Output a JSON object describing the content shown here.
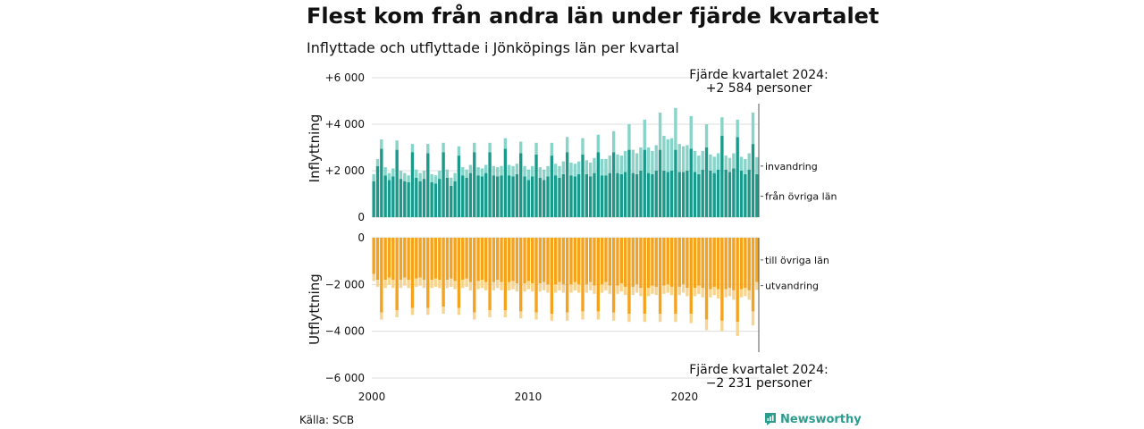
{
  "title": "Flest kom från andra län under fjärde kvartalet",
  "subtitle": "Inflyttade och utflyttade i Jönköpings län per kvartal",
  "source": "Källa: SCB",
  "brand": "Newsworthy",
  "colors": {
    "inflow_dark": "#1a9a8a",
    "inflow_light": "#88d4c9",
    "outflow_dark": "#f5a21c",
    "outflow_light": "#f7d590",
    "grid": "#dddddd",
    "brand": "#2a9d8f"
  },
  "chart_data": {
    "type": "bar",
    "stacked": true,
    "x_range": [
      2000,
      2024.75
    ],
    "x_ticks": [
      2000,
      2010,
      2020
    ],
    "x_tick_labels": [
      "2000",
      "2010",
      "2020"
    ],
    "inflow": {
      "ylabel": "Inflyttning",
      "ylim": [
        0,
        6000
      ],
      "y_ticks": [
        0,
        2000,
        4000,
        6000
      ],
      "y_tick_labels": [
        "0",
        "+2 000",
        "+4 000",
        "+6 000"
      ],
      "series": [
        {
          "name": "från övriga län",
          "values": [
            1550,
            2200,
            2950,
            1800,
            1600,
            1750,
            2900,
            1650,
            1550,
            1500,
            2800,
            1700,
            1550,
            1650,
            2750,
            1500,
            1450,
            1650,
            2800,
            1700,
            1350,
            1550,
            2650,
            1800,
            1700,
            1900,
            2800,
            1800,
            1750,
            1900,
            2800,
            1800,
            1750,
            1800,
            2950,
            1800,
            1750,
            1850,
            2750,
            1750,
            1600,
            1750,
            2700,
            1700,
            1600,
            1750,
            2650,
            1800,
            1700,
            1850,
            2800,
            1800,
            1750,
            1850,
            2700,
            1850,
            1750,
            1900,
            2800,
            1800,
            1800,
            1900,
            2800,
            1900,
            1850,
            1950,
            2900,
            1900,
            1850,
            2000,
            2900,
            1900,
            1850,
            2000,
            2900,
            2000,
            1950,
            2000,
            2900,
            1950,
            1950,
            2000,
            2950,
            1950,
            1850,
            2050,
            3000,
            2000,
            1900,
            2050,
            3500,
            2050,
            1950,
            2100,
            3450,
            2000,
            1850,
            2050,
            3150,
            1850
          ]
        },
        {
          "name": "invandring",
          "values": [
            300,
            300,
            400,
            350,
            300,
            350,
            400,
            350,
            350,
            300,
            350,
            350,
            350,
            350,
            400,
            350,
            350,
            350,
            400,
            350,
            350,
            350,
            400,
            350,
            350,
            350,
            400,
            350,
            350,
            350,
            400,
            400,
            400,
            400,
            450,
            450,
            450,
            450,
            500,
            450,
            450,
            450,
            500,
            450,
            450,
            450,
            550,
            500,
            500,
            550,
            650,
            550,
            550,
            550,
            700,
            600,
            600,
            650,
            750,
            700,
            700,
            750,
            900,
            800,
            800,
            900,
            1100,
            1000,
            900,
            1000,
            1300,
            1100,
            1000,
            1100,
            1600,
            1500,
            1400,
            1400,
            1800,
            1200,
            1100,
            1100,
            1400,
            900,
            800,
            800,
            1000,
            700,
            700,
            700,
            800,
            600,
            600,
            650,
            750,
            600,
            650,
            700,
            1350,
            734
          ]
        }
      ]
    },
    "outflow": {
      "ylabel": "Utflyttning",
      "ylim": [
        -6000,
        0
      ],
      "y_ticks": [
        0,
        -2000,
        -4000,
        -6000
      ],
      "y_tick_labels": [
        "0",
        "−2 000",
        "−4 000",
        "−6 000"
      ],
      "series": [
        {
          "name": "till övriga län",
          "values": [
            -1550,
            -1800,
            -3200,
            -1800,
            -1700,
            -1800,
            -3100,
            -1800,
            -1700,
            -1800,
            -3000,
            -1750,
            -1700,
            -1800,
            -3000,
            -1800,
            -1750,
            -1800,
            -2950,
            -1800,
            -1750,
            -1850,
            -3000,
            -1800,
            -1750,
            -1900,
            -3200,
            -1850,
            -1800,
            -1900,
            -3100,
            -1900,
            -1800,
            -1900,
            -3100,
            -1900,
            -1850,
            -1950,
            -3150,
            -1950,
            -1850,
            -1950,
            -3200,
            -1950,
            -1900,
            -2000,
            -3250,
            -2000,
            -1900,
            -2000,
            -3200,
            -2000,
            -1900,
            -2000,
            -3150,
            -2000,
            -1900,
            -2050,
            -3150,
            -2000,
            -1900,
            -2050,
            -3200,
            -2050,
            -1950,
            -2100,
            -3250,
            -2100,
            -2000,
            -2150,
            -3250,
            -2150,
            -2050,
            -2100,
            -3250,
            -2050,
            -2000,
            -2100,
            -3250,
            -2100,
            -2000,
            -2150,
            -3250,
            -2150,
            -2050,
            -2150,
            -3500,
            -2200,
            -2100,
            -2200,
            -3550,
            -2200,
            -2150,
            -2250,
            -3600,
            -2200,
            -2150,
            -2250,
            -3150,
            -1900
          ]
        },
        {
          "name": "utvandring",
          "values": [
            -300,
            -300,
            -300,
            -350,
            -300,
            -350,
            -300,
            -350,
            -350,
            -350,
            -300,
            -350,
            -350,
            -350,
            -300,
            -350,
            -350,
            -350,
            -300,
            -350,
            -350,
            -350,
            -300,
            -350,
            -350,
            -350,
            -300,
            -350,
            -350,
            -350,
            -300,
            -350,
            -350,
            -350,
            -300,
            -350,
            -350,
            -350,
            -300,
            -350,
            -350,
            -350,
            -300,
            -350,
            -350,
            -350,
            -300,
            -350,
            -350,
            -350,
            -350,
            -350,
            -350,
            -350,
            -350,
            -350,
            -350,
            -350,
            -350,
            -350,
            -350,
            -350,
            -350,
            -350,
            -350,
            -350,
            -350,
            -350,
            -350,
            -350,
            -350,
            -350,
            -350,
            -350,
            -350,
            -350,
            -350,
            -350,
            -350,
            -350,
            -350,
            -350,
            -400,
            -350,
            -350,
            -400,
            -450,
            -350,
            -350,
            -400,
            -450,
            -350,
            -350,
            -400,
            -600,
            -350,
            -350,
            -400,
            -600,
            -331
          ]
        }
      ]
    },
    "annotations": [
      {
        "text": "invandring",
        "panel": "inflow",
        "value": 2200
      },
      {
        "text": "från övriga län",
        "panel": "inflow",
        "value": 900
      },
      {
        "text": "till övriga län",
        "panel": "outflow",
        "value": -950
      },
      {
        "text": "utvandring",
        "panel": "outflow",
        "value": -2050
      },
      {
        "lines": [
          "Fjärde kvartalet 2024:",
          "+2 584 personer"
        ],
        "panel": "inflow",
        "position": "top"
      },
      {
        "lines": [
          "Fjärde kvartalet 2024:",
          "−2 231 personer"
        ],
        "panel": "outflow",
        "position": "bottom"
      }
    ]
  }
}
